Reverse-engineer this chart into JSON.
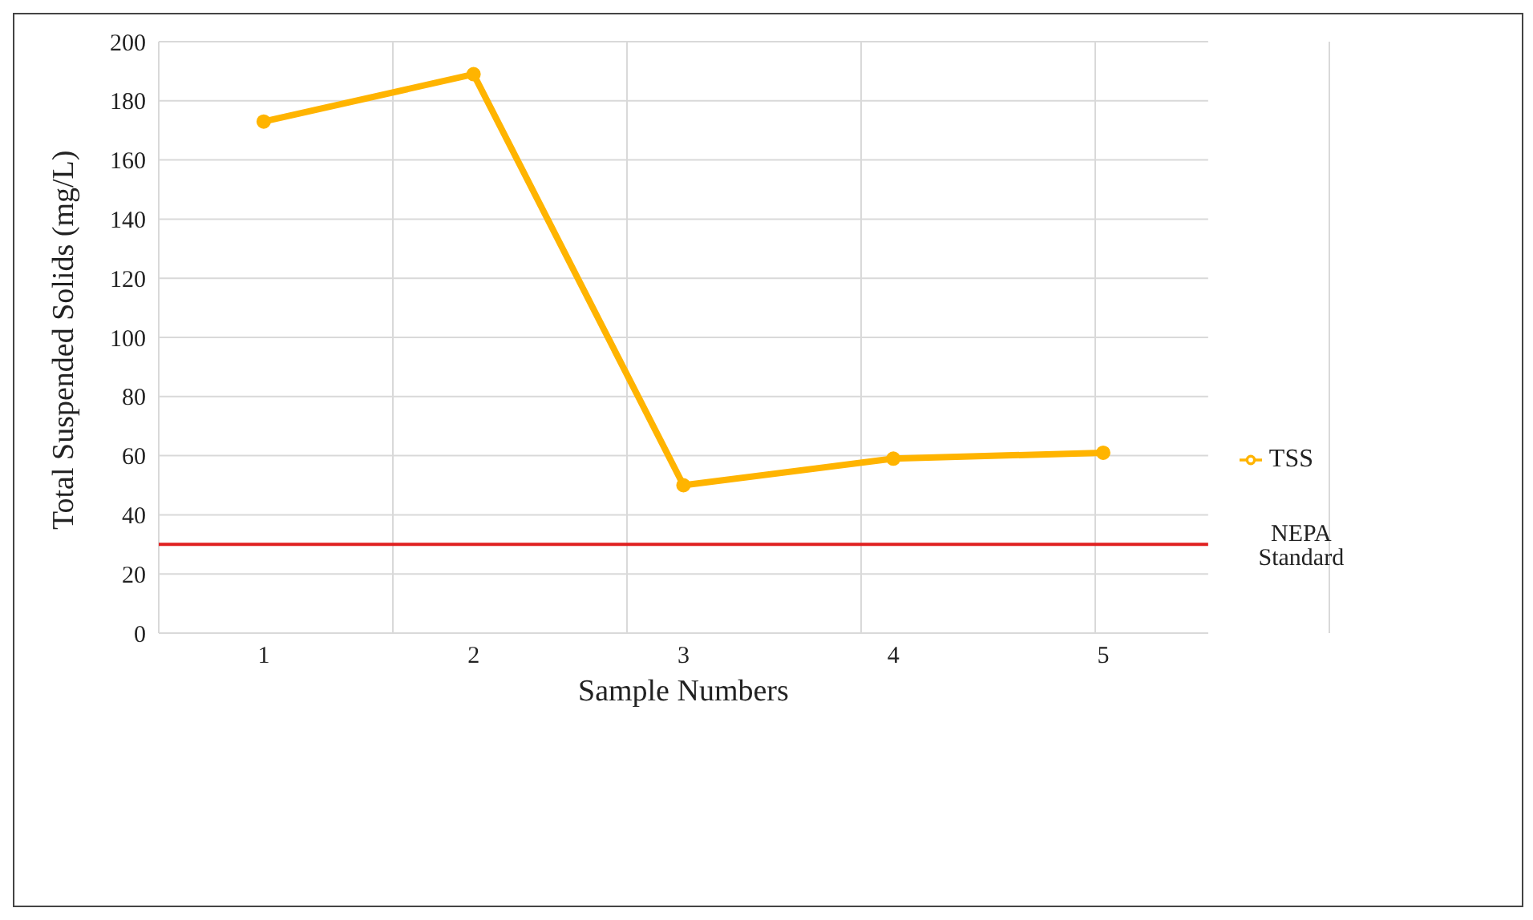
{
  "chart_data": {
    "type": "line",
    "xlabel": "Sample Numbers",
    "ylabel": "Total Suspended Solids (mg/L)",
    "categories": [
      "1",
      "2",
      "3",
      "4",
      "5"
    ],
    "series": [
      {
        "name": "TSS",
        "color": "#ffb400",
        "values": [
          173,
          189,
          50,
          59,
          61
        ]
      }
    ],
    "ylim": [
      0,
      200
    ],
    "yticks": [
      0,
      20,
      40,
      60,
      80,
      100,
      120,
      140,
      160,
      180,
      200
    ],
    "ref_lines": [
      {
        "axis": "y",
        "value": 30,
        "label": "NEPA Standard",
        "color": "#e02020"
      }
    ],
    "grid": true,
    "legend": "right",
    "marker": "circle",
    "line_style": "solid"
  }
}
